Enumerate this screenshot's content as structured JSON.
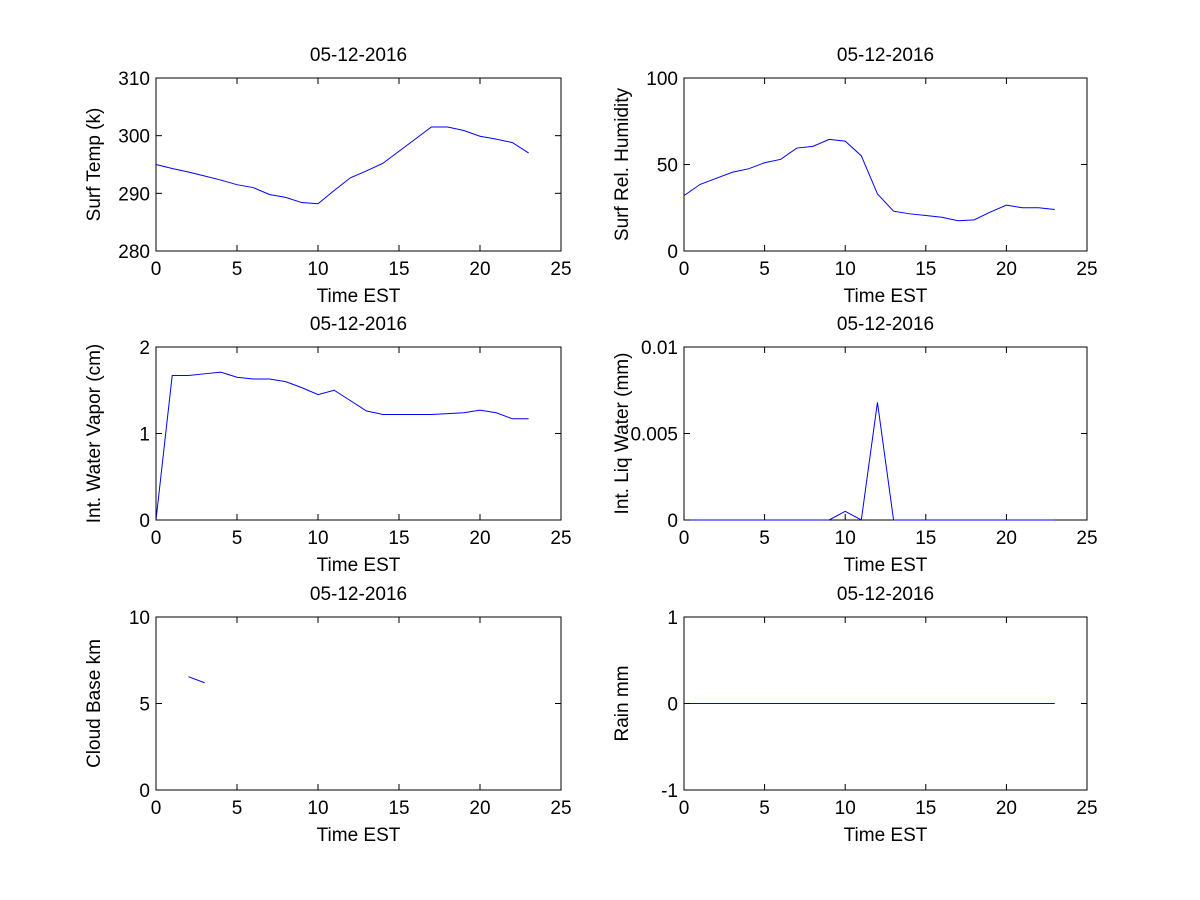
{
  "chart_data": [
    {
      "type": "line",
      "title": "05-12-2016",
      "xlabel": "Time EST",
      "ylabel": "Surf Temp (k)",
      "xlim": [
        0,
        25
      ],
      "ylim": [
        280,
        310
      ],
      "xticks": [
        "0",
        "5",
        "10",
        "15",
        "20",
        "25"
      ],
      "yticks": [
        "280",
        "290",
        "300",
        "310"
      ],
      "series": [
        {
          "name": "Surf Temp",
          "color": "#0000ff",
          "segments": [
            [
              [
                0,
                295
              ],
              [
                1,
                294.3
              ],
              [
                2,
                293.7
              ],
              [
                3,
                293
              ],
              [
                4,
                292.3
              ],
              [
                5,
                291.5
              ],
              [
                6,
                291
              ],
              [
                7,
                289.8
              ],
              [
                8,
                289.3
              ],
              [
                9,
                288.4
              ],
              [
                10,
                288.2
              ],
              [
                11,
                290.5
              ],
              [
                12,
                292.7
              ],
              [
                13,
                293.9
              ],
              [
                14,
                295.2
              ],
              [
                15,
                297.3
              ],
              [
                16,
                299.4
              ],
              [
                17,
                301.5
              ],
              [
                18,
                301.5
              ],
              [
                19,
                300.9
              ],
              [
                20,
                299.9
              ],
              [
                21,
                299.4
              ],
              [
                22,
                298.8
              ],
              [
                23,
                297
              ]
            ]
          ]
        }
      ]
    },
    {
      "type": "line",
      "title": "05-12-2016",
      "xlabel": "Time EST",
      "ylabel": "Surf Rel. Humidity",
      "xlim": [
        0,
        25
      ],
      "ylim": [
        0,
        100
      ],
      "xticks": [
        "0",
        "5",
        "10",
        "15",
        "20",
        "25"
      ],
      "yticks": [
        "0",
        "50",
        "100"
      ],
      "series": [
        {
          "name": "Surf Rel. Humidity",
          "color": "#0000ff",
          "segments": [
            [
              [
                0,
                32
              ],
              [
                1,
                38.5
              ],
              [
                2,
                42
              ],
              [
                3,
                45.5
              ],
              [
                4,
                47.5
              ],
              [
                5,
                51
              ],
              [
                6,
                53
              ],
              [
                7,
                59.5
              ],
              [
                8,
                60.5
              ],
              [
                9,
                64.5
              ],
              [
                10,
                63.5
              ],
              [
                11,
                55
              ],
              [
                12,
                33
              ],
              [
                13,
                23
              ],
              [
                14,
                21.5
              ],
              [
                15,
                20.5
              ],
              [
                16,
                19.5
              ],
              [
                17,
                17.5
              ],
              [
                18,
                18
              ],
              [
                19,
                22.5
              ],
              [
                20,
                26.5
              ],
              [
                21,
                25
              ],
              [
                22,
                25
              ],
              [
                23,
                24
              ]
            ]
          ]
        }
      ]
    },
    {
      "type": "line",
      "title": "05-12-2016",
      "xlabel": "Time EST",
      "ylabel": "Int. Water Vapor (cm)",
      "xlim": [
        0,
        25
      ],
      "ylim": [
        0,
        2
      ],
      "xticks": [
        "0",
        "5",
        "10",
        "15",
        "20",
        "25"
      ],
      "yticks": [
        "0",
        "1",
        "2"
      ],
      "series": [
        {
          "name": "Int. Water Vapor",
          "color": "#0000ff",
          "segments": [
            [
              [
                0,
                0
              ],
              [
                1,
                1.67
              ],
              [
                2,
                1.67
              ],
              [
                3,
                1.69
              ],
              [
                4,
                1.71
              ],
              [
                5,
                1.65
              ],
              [
                6,
                1.63
              ],
              [
                7,
                1.63
              ],
              [
                8,
                1.6
              ],
              [
                9,
                1.53
              ],
              [
                10,
                1.45
              ],
              [
                11,
                1.5
              ],
              [
                12,
                1.38
              ],
              [
                13,
                1.26
              ],
              [
                14,
                1.22
              ],
              [
                15,
                1.22
              ],
              [
                16,
                1.22
              ],
              [
                17,
                1.22
              ],
              [
                18,
                1.23
              ],
              [
                19,
                1.24
              ],
              [
                20,
                1.27
              ],
              [
                21,
                1.24
              ],
              [
                22,
                1.17
              ],
              [
                23,
                1.17
              ]
            ]
          ]
        }
      ]
    },
    {
      "type": "line",
      "title": "05-12-2016",
      "xlabel": "Time EST",
      "ylabel": "Int. Liq Water (mm)",
      "xlim": [
        0,
        25
      ],
      "ylim": [
        0,
        0.01
      ],
      "xticks": [
        "0",
        "5",
        "10",
        "15",
        "20",
        "25"
      ],
      "yticks": [
        "0",
        "0.005",
        "0.01"
      ],
      "series": [
        {
          "name": "Int. Liq Water",
          "color": "#0000ff",
          "segments": [
            [
              [
                0,
                0
              ],
              [
                1,
                0
              ],
              [
                2,
                0
              ],
              [
                3,
                0
              ],
              [
                4,
                0
              ],
              [
                5,
                0
              ],
              [
                6,
                0
              ],
              [
                7,
                0
              ],
              [
                8,
                0
              ],
              [
                9,
                0
              ],
              [
                10,
                0.0005
              ],
              [
                11,
                0
              ],
              [
                12,
                0.0068
              ],
              [
                13,
                0
              ],
              [
                14,
                0
              ],
              [
                15,
                0
              ],
              [
                16,
                0
              ],
              [
                17,
                0
              ],
              [
                18,
                0
              ],
              [
                19,
                0
              ],
              [
                20,
                0
              ],
              [
                21,
                0
              ],
              [
                22,
                0
              ],
              [
                23,
                0
              ]
            ]
          ]
        }
      ]
    },
    {
      "type": "line",
      "title": "05-12-2016",
      "xlabel": "Time EST",
      "ylabel": "Cloud Base km",
      "xlim": [
        0,
        25
      ],
      "ylim": [
        0,
        10
      ],
      "xticks": [
        "0",
        "5",
        "10",
        "15",
        "20",
        "25"
      ],
      "yticks": [
        "0",
        "5",
        "10"
      ],
      "series": [
        {
          "name": "Cloud Base",
          "color": "#0000ff",
          "segments": [
            [
              [
                2,
                6.55
              ],
              [
                3,
                6.2
              ]
            ]
          ]
        }
      ]
    },
    {
      "type": "line",
      "title": "05-12-2016",
      "xlabel": "Time EST",
      "ylabel": "Rain mm",
      "xlim": [
        0,
        25
      ],
      "ylim": [
        -1,
        1
      ],
      "xticks": [
        "0",
        "5",
        "10",
        "15",
        "20",
        "25"
      ],
      "yticks": [
        "-1",
        "0",
        "1"
      ],
      "series": [
        {
          "name": "Rain",
          "color": "#0000ff",
          "segments": [
            [
              [
                0,
                0
              ],
              [
                23,
                0
              ]
            ]
          ]
        }
      ]
    }
  ]
}
